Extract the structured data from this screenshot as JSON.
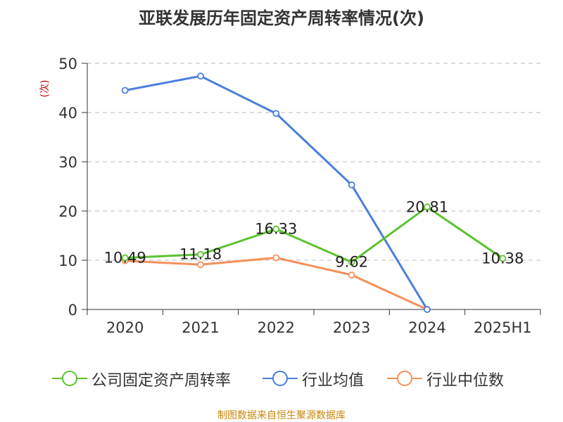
{
  "title": "亚联发展历年固定资产周转率情况(次)",
  "source": "制图数据来自恒生聚源数据库",
  "chart_data": {
    "type": "line",
    "title": "亚联发展历年固定资产周转率情况(次)",
    "ylabel": "(次)",
    "xlabel": "",
    "categories": [
      "2020",
      "2021",
      "2022",
      "2023",
      "2024",
      "2025H1"
    ],
    "ylim": [
      0,
      50
    ],
    "yticks": [
      0,
      10,
      20,
      30,
      40,
      50
    ],
    "grid": true,
    "legend_position": "bottom",
    "series": [
      {
        "name": "公司固定资产周转率",
        "color": "#5cc22e",
        "show_labels": true,
        "labels": [
          "10.49",
          "11.18",
          "16.33",
          "9.62",
          "20.81",
          "10.38"
        ],
        "values": [
          10.49,
          11.18,
          16.33,
          9.62,
          20.81,
          10.38
        ]
      },
      {
        "name": "行业均值",
        "color": "#4a7fdc",
        "show_labels": false,
        "values": [
          44.5,
          47.4,
          39.8,
          25.3,
          0.0,
          null
        ]
      },
      {
        "name": "行业中位数",
        "color": "#f5905a",
        "show_labels": false,
        "values": [
          9.9,
          9.1,
          10.5,
          7.0,
          0.0,
          null
        ]
      }
    ]
  }
}
